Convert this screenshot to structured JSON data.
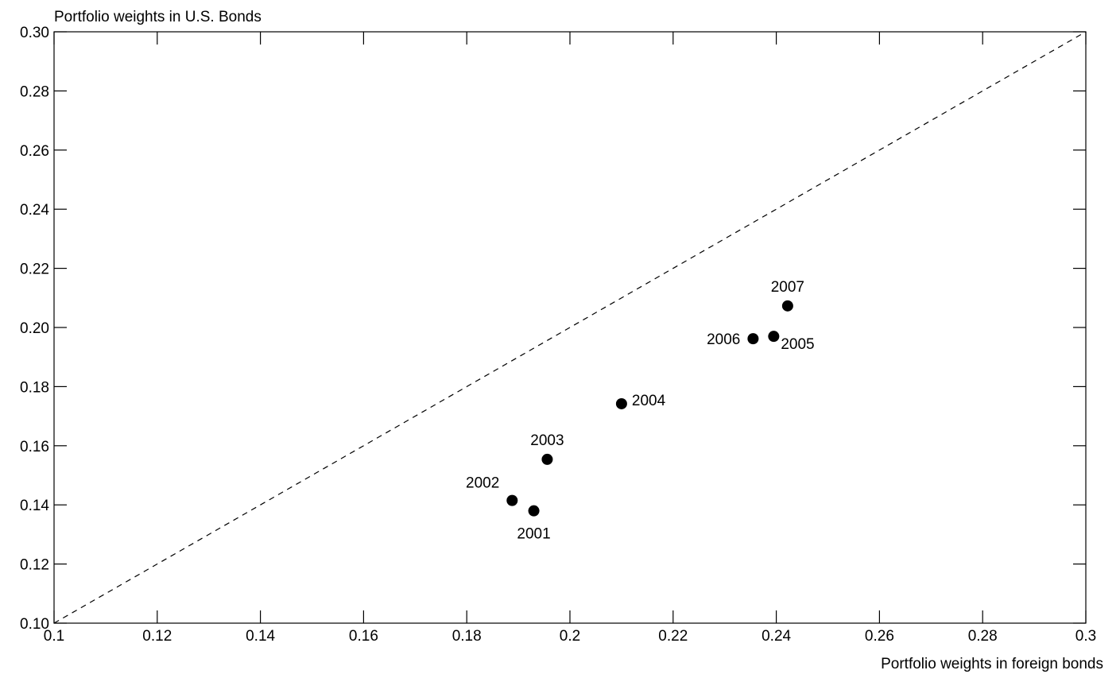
{
  "chart_data": {
    "type": "scatter",
    "title": "",
    "ylabel": "Portfolio weights in U.S. Bonds",
    "xlabel": "Portfolio weights in foreign bonds",
    "xlim": [
      0.1,
      0.3
    ],
    "ylim": [
      0.1,
      0.3
    ],
    "xticks": [
      {
        "value": 0.1,
        "label": "0.1"
      },
      {
        "value": 0.12,
        "label": "0.12"
      },
      {
        "value": 0.14,
        "label": "0.14"
      },
      {
        "value": 0.16,
        "label": "0.16"
      },
      {
        "value": 0.18,
        "label": "0.18"
      },
      {
        "value": 0.2,
        "label": "0.2"
      },
      {
        "value": 0.22,
        "label": "0.22"
      },
      {
        "value": 0.24,
        "label": "0.24"
      },
      {
        "value": 0.26,
        "label": "0.26"
      },
      {
        "value": 0.28,
        "label": "0.28"
      },
      {
        "value": 0.3,
        "label": "0.3"
      }
    ],
    "yticks": [
      {
        "value": 0.1,
        "label": "0.10"
      },
      {
        "value": 0.12,
        "label": "0.12"
      },
      {
        "value": 0.14,
        "label": "0.14"
      },
      {
        "value": 0.16,
        "label": "0.16"
      },
      {
        "value": 0.18,
        "label": "0.18"
      },
      {
        "value": 0.2,
        "label": "0.20"
      },
      {
        "value": 0.22,
        "label": "0.22"
      },
      {
        "value": 0.24,
        "label": "0.24"
      },
      {
        "value": 0.26,
        "label": "0.26"
      },
      {
        "value": 0.28,
        "label": "0.28"
      },
      {
        "value": 0.3,
        "label": "0.30"
      }
    ],
    "grid": false,
    "reference_line": {
      "style": "dashed",
      "from": [
        0.1,
        0.1
      ],
      "to": [
        0.3,
        0.3
      ]
    },
    "points": [
      {
        "label": "2001",
        "x": 0.193,
        "y": 0.138,
        "label_position": "below"
      },
      {
        "label": "2002",
        "x": 0.1888,
        "y": 0.1415,
        "label_position": "upper-left"
      },
      {
        "label": "2003",
        "x": 0.1956,
        "y": 0.1554,
        "label_position": "above"
      },
      {
        "label": "2004",
        "x": 0.21,
        "y": 0.1742,
        "label_position": "right"
      },
      {
        "label": "2005",
        "x": 0.2395,
        "y": 0.197,
        "label_position": "lower-right"
      },
      {
        "label": "2006",
        "x": 0.2355,
        "y": 0.1962,
        "label_position": "left"
      },
      {
        "label": "2007",
        "x": 0.2422,
        "y": 0.2073,
        "label_position": "above"
      }
    ]
  }
}
